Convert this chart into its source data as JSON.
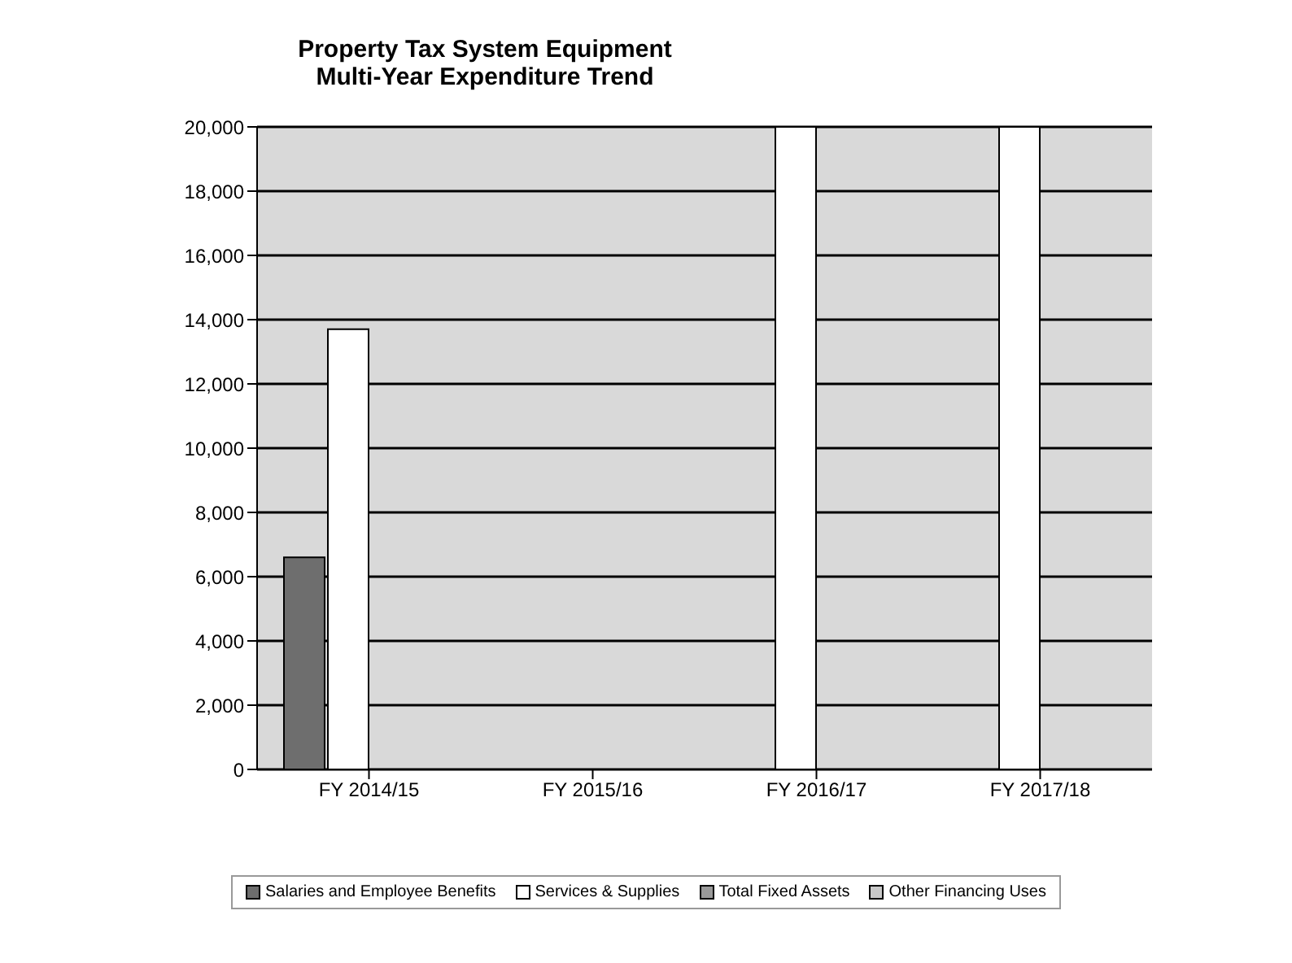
{
  "chart_data": {
    "type": "bar",
    "title": "Property Tax System Equipment\nMulti-Year Expenditure Trend",
    "categories": [
      "FY 2014/15",
      "FY 2015/16",
      "FY 2016/17",
      "FY 2017/18"
    ],
    "series": [
      {
        "name": "Salaries and Employee Benefits",
        "color": "#6e6e6e",
        "values": [
          6600,
          0,
          0,
          0
        ]
      },
      {
        "name": "Services & Supplies",
        "color": "#ffffff",
        "values": [
          13700,
          0,
          20000,
          20000
        ]
      },
      {
        "name": "Total Fixed Assets",
        "color": "#9a9a9a",
        "values": [
          0,
          0,
          0,
          0
        ]
      },
      {
        "name": "Other Financing Uses",
        "color": "#c8c8c8",
        "values": [
          0,
          0,
          0,
          0
        ]
      }
    ],
    "ylim": [
      0,
      20000
    ],
    "yticks": [
      {
        "value": 0,
        "label": "0"
      },
      {
        "value": 2000,
        "label": "2,000"
      },
      {
        "value": 4000,
        "label": "4,000"
      },
      {
        "value": 6000,
        "label": "6,000"
      },
      {
        "value": 8000,
        "label": "8,000"
      },
      {
        "value": 10000,
        "label": "10,000"
      },
      {
        "value": 12000,
        "label": "12,000"
      },
      {
        "value": 14000,
        "label": "14,000"
      },
      {
        "value": 16000,
        "label": "16,000"
      },
      {
        "value": 18000,
        "label": "18,000"
      },
      {
        "value": 20000,
        "label": "20,000"
      }
    ],
    "grid": "y",
    "legend": "bottom"
  }
}
